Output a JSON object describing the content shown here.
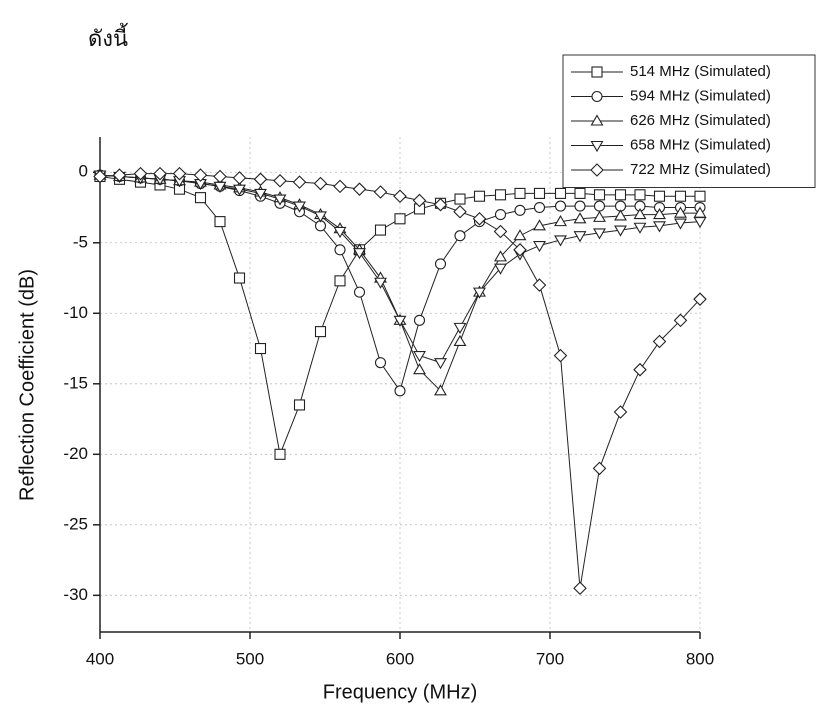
{
  "chart_data": {
    "type": "line",
    "annotation": "ดังนี้",
    "x_label": "Frequency (MHz)",
    "y_label": "Reflection Coefficient (dB)",
    "x": [
      400,
      413,
      427,
      440,
      453,
      467,
      480,
      493,
      507,
      520,
      533,
      547,
      560,
      573,
      587,
      600,
      613,
      627,
      640,
      653,
      667,
      680,
      693,
      707,
      720,
      733,
      747,
      760,
      773,
      787,
      800
    ],
    "series": [
      {
        "name": "514 MHz (Simulated)",
        "color": "#222222",
        "marker": "square",
        "values": [
          -0.3,
          -0.5,
          -0.7,
          -0.9,
          -1.2,
          -1.8,
          -3.5,
          -7.5,
          -12.5,
          -20,
          -16.5,
          -11.3,
          -7.7,
          -5.5,
          -4.1,
          -3.3,
          -2.6,
          -2.2,
          -1.9,
          -1.7,
          -1.6,
          -1.5,
          -1.5,
          -1.5,
          -1.5,
          -1.6,
          -1.6,
          -1.6,
          -1.7,
          -1.7,
          -1.7
        ]
      },
      {
        "name": "594 MHz (Simulated)",
        "color": "#222222",
        "marker": "circle",
        "values": [
          -0.2,
          -0.3,
          -0.4,
          -0.5,
          -0.6,
          -0.8,
          -1.0,
          -1.3,
          -1.7,
          -2.2,
          -2.8,
          -3.8,
          -5.5,
          -8.5,
          -13.5,
          -15.5,
          -10.5,
          -6.5,
          -4.5,
          -3.5,
          -3.0,
          -2.7,
          -2.5,
          -2.4,
          -2.4,
          -2.4,
          -2.4,
          -2.4,
          -2.5,
          -2.5,
          -2.5
        ]
      },
      {
        "name": "626 MHz (Simulated)",
        "color": "#222222",
        "marker": "triangle-up",
        "values": [
          -0.2,
          -0.3,
          -0.4,
          -0.5,
          -0.6,
          -0.7,
          -0.9,
          -1.1,
          -1.4,
          -1.8,
          -2.3,
          -3.0,
          -4.0,
          -5.5,
          -7.5,
          -10.5,
          -14,
          -15.5,
          -12,
          -8.5,
          -6,
          -4.5,
          -3.8,
          -3.5,
          -3.3,
          -3.2,
          -3.1,
          -3.0,
          -3.0,
          -2.9,
          -2.9
        ]
      },
      {
        "name": "658 MHz (Simulated)",
        "color": "#222222",
        "marker": "triangle-down",
        "values": [
          -0.2,
          -0.3,
          -0.4,
          -0.5,
          -0.6,
          -0.8,
          -1.0,
          -1.2,
          -1.5,
          -1.9,
          -2.4,
          -3.1,
          -4.2,
          -5.7,
          -7.8,
          -10.5,
          -13,
          -13.5,
          -11,
          -8.5,
          -6.8,
          -5.8,
          -5.2,
          -4.8,
          -4.5,
          -4.3,
          -4.1,
          -3.9,
          -3.8,
          -3.6,
          -3.5
        ]
      },
      {
        "name": "722 MHz (Simulated)",
        "color": "#222222",
        "marker": "diamond",
        "values": [
          -0.3,
          -0.2,
          -0.1,
          -0.1,
          -0.1,
          -0.2,
          -0.3,
          -0.4,
          -0.5,
          -0.6,
          -0.7,
          -0.8,
          -1.0,
          -1.2,
          -1.4,
          -1.7,
          -2.0,
          -2.3,
          -2.8,
          -3.3,
          -4.2,
          -5.5,
          -8.0,
          -13,
          -29.5,
          -21,
          -17,
          -14,
          -12,
          -10.5,
          -9
        ]
      }
    ],
    "xlim": [
      400,
      800
    ],
    "ylim": [
      -32.6,
      2.5
    ],
    "xticks": [
      400,
      500,
      600,
      700,
      800
    ],
    "yticks": [
      0,
      -5,
      -10,
      -15,
      -20,
      -25,
      -30
    ],
    "grid": true,
    "legend": "top-right"
  }
}
